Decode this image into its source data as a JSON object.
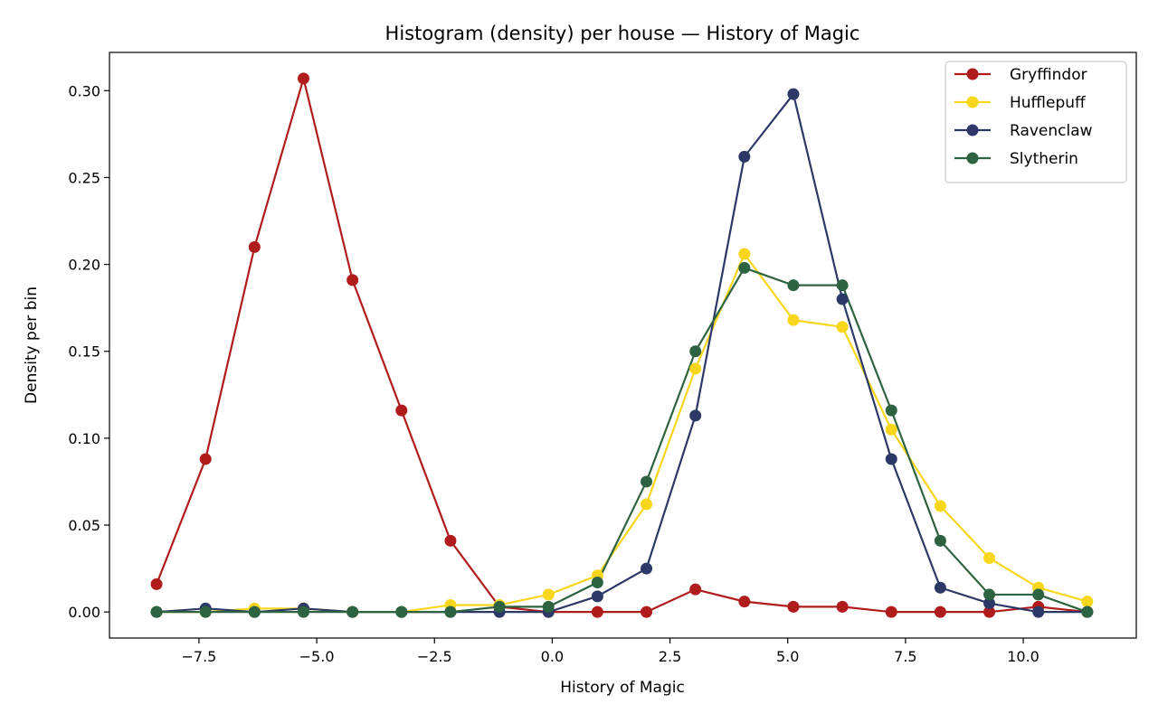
{
  "chart_data": {
    "type": "line",
    "title": "Histogram (density) per house — History of Magic",
    "xlabel": "History of Magic",
    "ylabel": "Density per bin",
    "xlim": [
      -9.4,
      12.4
    ],
    "ylim": [
      -0.015,
      0.322
    ],
    "xticks": [
      -7.5,
      -5.0,
      -2.5,
      0.0,
      2.5,
      5.0,
      7.5,
      10.0
    ],
    "xtick_labels": [
      "−7.5",
      "−5.0",
      "−2.5",
      "0.0",
      "2.5",
      "5.0",
      "7.5",
      "10.0"
    ],
    "yticks": [
      0.0,
      0.05,
      0.1,
      0.15,
      0.2,
      0.25,
      0.3
    ],
    "ytick_labels": [
      "0.00",
      "0.05",
      "0.10",
      "0.15",
      "0.20",
      "0.25",
      "0.30"
    ],
    "grid": false,
    "legend_position": "top-right",
    "x": [
      -8.4,
      -7.36,
      -6.32,
      -5.28,
      -4.24,
      -3.2,
      -2.16,
      -1.12,
      -0.08,
      0.96,
      2.0,
      3.04,
      4.08,
      5.12,
      6.16,
      7.2,
      8.24,
      9.28,
      10.32,
      11.36
    ],
    "series": [
      {
        "name": "Gryffindor",
        "color": "#b01c1c",
        "values": [
          0.016,
          0.088,
          0.21,
          0.307,
          0.191,
          0.116,
          0.041,
          0.003,
          0.0,
          0.0,
          0.0,
          0.013,
          0.006,
          0.003,
          0.003,
          0.0,
          0.0,
          0.0,
          0.003,
          0.0
        ]
      },
      {
        "name": "Hufflepuff",
        "color": "#f7d61b",
        "values": [
          0.0,
          0.0,
          0.002,
          0.002,
          0.0,
          0.0,
          0.004,
          0.004,
          0.01,
          0.021,
          0.062,
          0.14,
          0.206,
          0.168,
          0.164,
          0.105,
          0.061,
          0.031,
          0.014,
          0.006
        ]
      },
      {
        "name": "Ravenclaw",
        "color": "#2c3966",
        "values": [
          0.0,
          0.002,
          0.0,
          0.002,
          0.0,
          0.0,
          0.0,
          0.0,
          0.0,
          0.009,
          0.025,
          0.113,
          0.262,
          0.298,
          0.18,
          0.088,
          0.014,
          0.005,
          0.0,
          0.0
        ]
      },
      {
        "name": "Slytherin",
        "color": "#2e6342",
        "values": [
          0.0,
          0.0,
          0.0,
          0.0,
          0.0,
          0.0,
          0.0,
          0.003,
          0.003,
          0.017,
          0.075,
          0.15,
          0.198,
          0.188,
          0.188,
          0.116,
          0.041,
          0.01,
          0.01,
          0.0
        ]
      }
    ]
  }
}
